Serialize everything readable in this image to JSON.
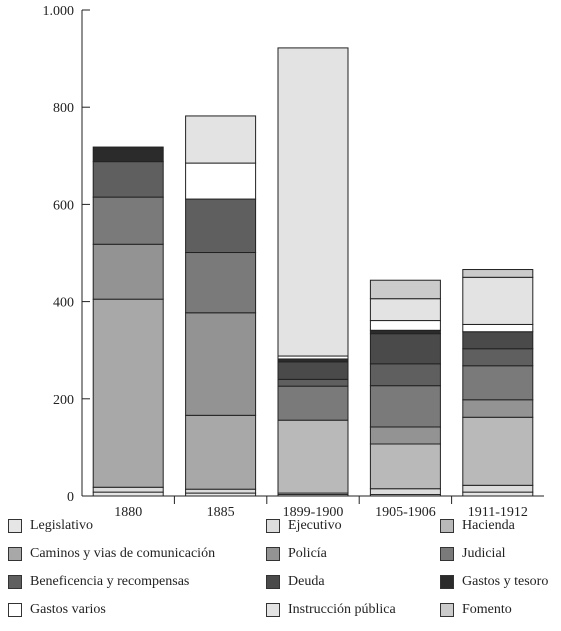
{
  "chart_data": {
    "type": "bar",
    "stacked": true,
    "categories": [
      "1880",
      "1885",
      "1899-1900",
      "1905-1906",
      "1911-1912"
    ],
    "ylim": [
      0,
      1000
    ],
    "yticks": [
      0,
      200,
      400,
      600,
      800,
      1000
    ],
    "ytick_labels": [
      "0",
      "200",
      "400",
      "600",
      "800",
      "1.000"
    ],
    "series": [
      {
        "name": "Legislativo",
        "color": "#e6e6e6",
        "values": [
          8,
          6,
          3,
          3,
          8
        ]
      },
      {
        "name": "Ejecutivo",
        "color": "#dcdcdc",
        "values": [
          10,
          8,
          3,
          12,
          14
        ]
      },
      {
        "name": "Hacienda",
        "color": "#b9b9b9",
        "values": [
          0,
          0,
          150,
          92,
          140
        ]
      },
      {
        "name": "Caminos y vias de comunicación",
        "color": "#a8a8a8",
        "values": [
          387,
          152,
          0,
          0,
          0
        ]
      },
      {
        "name": "Policía",
        "color": "#939393",
        "values": [
          113,
          211,
          0,
          35,
          36
        ]
      },
      {
        "name": "Judicial",
        "color": "#7a7a7a",
        "values": [
          97,
          124,
          70,
          85,
          70
        ]
      },
      {
        "name": "Beneficencia y recompensas",
        "color": "#5f5f5f",
        "values": [
          73,
          110,
          14,
          45,
          35
        ]
      },
      {
        "name": "Deuda",
        "color": "#4a4a4a",
        "values": [
          0,
          0,
          36,
          62,
          35
        ]
      },
      {
        "name": "Gastos y tesoro",
        "color": "#2b2b2b",
        "values": [
          30,
          0,
          6,
          7,
          0
        ]
      },
      {
        "name": "Gastos varios",
        "color": "#ffffff",
        "values": [
          0,
          74,
          6,
          20,
          15
        ]
      },
      {
        "name": "Instrucción pública",
        "color": "#e3e3e3",
        "values": [
          0,
          97,
          634,
          45,
          97
        ]
      },
      {
        "name": "Fomento",
        "color": "#cbcbcb",
        "values": [
          0,
          0,
          0,
          38,
          16
        ]
      }
    ],
    "legend_position": "bottom",
    "grid": false
  }
}
